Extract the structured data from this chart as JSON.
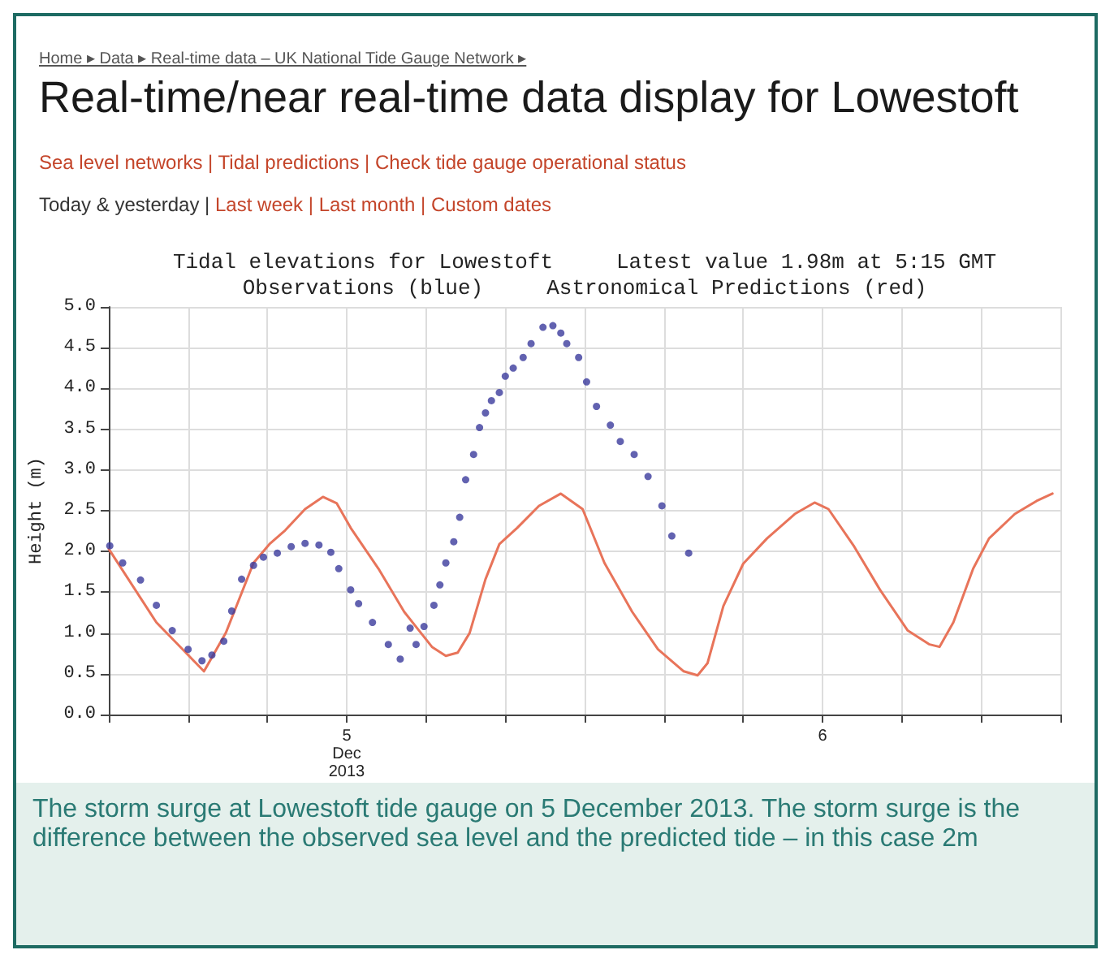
{
  "chart_data": {
    "type": "line",
    "title": "Tidal elevations for Lowestoft     Latest value 1.98m at 5:15 GMT",
    "subtitle": "Observations (blue)     Astronomical Predictions (red)",
    "ylabel": "Height (m)",
    "annotations": [
      "Home ▸ Data ▸ Real-time data – UK National Tide Gauge Network ▸",
      "Real-time/near real-time data display for Lowestoft",
      "Sea level networks | Tidal predictions | Check tide gauge operational status",
      "Today & yesterday | Last week | Last month | Custom dates",
      "The storm surge at Lowestoft tide gauge on 5 December 2013. The storm surge is the difference between the observed sea level and the predicted tide – in this case 2m"
    ],
    "xlim": [
      "2013-12-05T00:00",
      "2013-12-07T00:00"
    ],
    "xticks": [
      {
        "value": "2013-12-05T00:00",
        "label": null
      },
      {
        "value": "2013-12-05T04:00",
        "label": null
      },
      {
        "value": "2013-12-05T08:00",
        "label": null
      },
      {
        "value": "2013-12-05T12:00",
        "label": "5\nDec\n2013"
      },
      {
        "value": "2013-12-05T16:00",
        "label": null
      },
      {
        "value": "2013-12-05T20:00",
        "label": null
      },
      {
        "value": "2013-12-06T00:00",
        "label": null
      },
      {
        "value": "2013-12-06T04:00",
        "label": null
      },
      {
        "value": "2013-12-06T08:00",
        "label": null
      },
      {
        "value": "2013-12-06T12:00",
        "label": "6"
      },
      {
        "value": "2013-12-06T16:00",
        "label": null
      },
      {
        "value": "2013-12-06T20:00",
        "label": null
      },
      {
        "value": "2013-12-07T00:00",
        "label": null
      }
    ],
    "ylim": [
      0,
      5
    ],
    "yticks": [
      {
        "value": 0,
        "label": "0.0"
      },
      {
        "value": 0.5,
        "label": "0.5"
      },
      {
        "value": 1,
        "label": "1.0"
      },
      {
        "value": 1.5,
        "label": "1.5"
      },
      {
        "value": 2,
        "label": "2.0"
      },
      {
        "value": 2.5,
        "label": "2.5"
      },
      {
        "value": 3,
        "label": "3.0"
      },
      {
        "value": 3.5,
        "label": "3.5"
      },
      {
        "value": 4,
        "label": "4.0"
      },
      {
        "value": 4.5,
        "label": "4.5"
      },
      {
        "value": 5,
        "label": "5.0"
      }
    ],
    "grid": true,
    "series": [
      {
        "color": "#e8745a",
        "marker": "none",
        "x": [
          "2013-12-05T00:00",
          "2013-12-05T02:24",
          "2013-12-05T04:48",
          "2013-12-05T05:54",
          "2013-12-05T07:18",
          "2013-12-05T08:06",
          "2013-12-05T08:54",
          "2013-12-05T09:54",
          "2013-12-05T10:48",
          "2013-12-05T11:30",
          "2013-12-05T12:12",
          "2013-12-05T13:36",
          "2013-12-05T14:54",
          "2013-12-05T16:18",
          "2013-12-05T17:00",
          "2013-12-05T17:36",
          "2013-12-05T18:12",
          "2013-12-05T19:00",
          "2013-12-05T19:42",
          "2013-12-05T20:36",
          "2013-12-05T21:42",
          "2013-12-05T22:48",
          "2013-12-05T23:54",
          "2013-12-06T01:00",
          "2013-12-06T02:24",
          "2013-12-06T03:42",
          "2013-12-06T05:00",
          "2013-12-06T05:42",
          "2013-12-06T06:12",
          "2013-12-06T07:00",
          "2013-12-06T08:00",
          "2013-12-06T09:12",
          "2013-12-06T10:36",
          "2013-12-06T11:36",
          "2013-12-06T12:18",
          "2013-12-06T13:36",
          "2013-12-06T14:54",
          "2013-12-06T16:18",
          "2013-12-06T17:24",
          "2013-12-06T17:54",
          "2013-12-06T18:36",
          "2013-12-06T19:36",
          "2013-12-06T20:24",
          "2013-12-06T21:42",
          "2013-12-06T22:48",
          "2013-12-06T23:36"
        ],
        "values": [
          2.03,
          1.13,
          0.53,
          1,
          1.86,
          2.09,
          2.26,
          2.52,
          2.67,
          2.59,
          2.29,
          1.79,
          1.26,
          0.83,
          0.72,
          0.76,
          1,
          1.66,
          2.09,
          2.29,
          2.56,
          2.71,
          2.52,
          1.86,
          1.26,
          0.8,
          0.53,
          0.48,
          0.63,
          1.33,
          1.85,
          2.16,
          2.46,
          2.6,
          2.52,
          2.06,
          1.53,
          1.03,
          0.86,
          0.83,
          1.13,
          1.79,
          2.16,
          2.46,
          2.62,
          2.71
        ]
      },
      {
        "type": "scatter",
        "color": "#3b3b9c",
        "marker": "circle",
        "x": [
          "2013-12-05T00:03",
          "2013-12-05T00:42",
          "2013-12-05T01:36",
          "2013-12-05T02:24",
          "2013-12-05T03:12",
          "2013-12-05T04:00",
          "2013-12-05T04:42",
          "2013-12-05T05:12",
          "2013-12-05T05:48",
          "2013-12-05T06:12",
          "2013-12-05T06:42",
          "2013-12-05T07:18",
          "2013-12-05T07:48",
          "2013-12-05T08:30",
          "2013-12-05T09:12",
          "2013-12-05T09:54",
          "2013-12-05T10:36",
          "2013-12-05T11:12",
          "2013-12-05T11:36",
          "2013-12-05T12:12",
          "2013-12-05T12:36",
          "2013-12-05T13:18",
          "2013-12-05T14:06",
          "2013-12-05T14:42",
          "2013-12-05T15:12",
          "2013-12-05T15:30",
          "2013-12-05T15:54",
          "2013-12-05T16:24",
          "2013-12-05T16:42",
          "2013-12-05T17:00",
          "2013-12-05T17:24",
          "2013-12-05T17:42",
          "2013-12-05T18:00",
          "2013-12-05T18:24",
          "2013-12-05T18:42",
          "2013-12-05T19:00",
          "2013-12-05T19:18",
          "2013-12-05T19:42",
          "2013-12-05T20:00",
          "2013-12-05T20:24",
          "2013-12-05T20:54",
          "2013-12-05T21:18",
          "2013-12-05T21:54",
          "2013-12-05T22:24",
          "2013-12-05T22:48",
          "2013-12-05T23:06",
          "2013-12-05T23:42",
          "2013-12-06T00:06",
          "2013-12-06T00:36",
          "2013-12-06T01:18",
          "2013-12-06T01:48",
          "2013-12-06T02:30",
          "2013-12-06T03:12",
          "2013-12-06T03:54",
          "2013-12-06T04:24",
          "2013-12-06T05:15"
        ],
        "values": [
          2.07,
          1.86,
          1.65,
          1.34,
          1.03,
          0.8,
          0.66,
          0.73,
          0.9,
          1.27,
          1.66,
          1.83,
          1.93,
          1.98,
          2.06,
          2.1,
          2.08,
          1.99,
          1.79,
          1.53,
          1.36,
          1.13,
          0.86,
          0.68,
          1.06,
          0.86,
          1.08,
          1.34,
          1.59,
          1.86,
          2.12,
          2.42,
          2.88,
          3.19,
          3.52,
          3.7,
          3.85,
          3.95,
          4.15,
          4.25,
          4.38,
          4.55,
          4.75,
          4.77,
          4.68,
          4.55,
          4.38,
          4.08,
          3.78,
          3.55,
          3.35,
          3.19,
          2.92,
          2.56,
          2.19,
          1.98
        ]
      }
    ]
  }
}
